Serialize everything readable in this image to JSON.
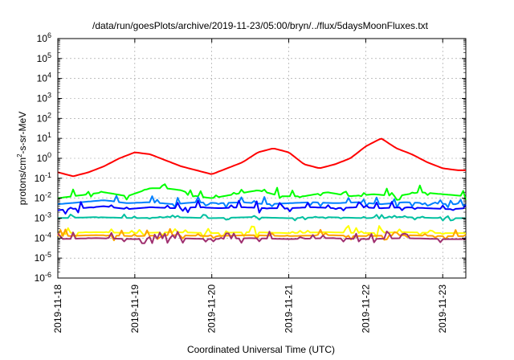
{
  "chart_data": {
    "type": "line",
    "title": "/data/run/goesPlots/archive/2019-11-23/05:00/bryn/../flux/5daysMoonFluxes.txt",
    "xlabel": "Coordinated Universal Time (UTC)",
    "ylabel": "protons/cm²-s-sr-MeV",
    "ylabel_parts": {
      "base": "protons/cm",
      "sup": "2",
      "rest": "-s-sr-MeV"
    },
    "x_ticks": [
      "2019-11-18",
      "2019-11-19",
      "2019-11-20",
      "2019-11-21",
      "2019-11-22",
      "2019-11-23"
    ],
    "x_range": [
      "2019-11-18",
      "2019-11-23 07:00"
    ],
    "y_scale": "log",
    "ylim": [
      1e-06,
      1000000.0
    ],
    "y_ticks": [
      {
        "base": "10",
        "exp": "-6"
      },
      {
        "base": "10",
        "exp": "-5"
      },
      {
        "base": "10",
        "exp": "-4"
      },
      {
        "base": "10",
        "exp": "-3"
      },
      {
        "base": "10",
        "exp": "-2"
      },
      {
        "base": "10",
        "exp": "-1"
      },
      {
        "base": "10",
        "exp": "0"
      },
      {
        "base": "10",
        "exp": "1"
      },
      {
        "base": "10",
        "exp": "2"
      },
      {
        "base": "10",
        "exp": "3"
      },
      {
        "base": "10",
        "exp": "4"
      },
      {
        "base": "10",
        "exp": "5"
      },
      {
        "base": "10",
        "exp": "6"
      }
    ],
    "grid": true,
    "series": [
      {
        "color": "#ff0000",
        "x_days": [
          0,
          0.2,
          0.4,
          0.6,
          0.8,
          1.0,
          1.2,
          1.4,
          1.6,
          1.8,
          2.0,
          2.2,
          2.4,
          2.6,
          2.8,
          3.0,
          3.2,
          3.4,
          3.6,
          3.8,
          4.0,
          4.2,
          4.4,
          4.6,
          4.8,
          5.0,
          5.2,
          5.3
        ],
        "log_values": [
          -0.7,
          -0.9,
          -0.7,
          -0.4,
          0.0,
          0.3,
          0.2,
          -0.1,
          -0.4,
          -0.6,
          -0.8,
          -0.5,
          -0.2,
          0.3,
          0.5,
          0.3,
          -0.3,
          -0.5,
          -0.3,
          0.0,
          0.6,
          1.0,
          0.5,
          0.2,
          -0.2,
          -0.5,
          -0.6,
          -0.6
        ]
      },
      {
        "color": "#00ff00",
        "x_days": [
          0,
          0.3,
          0.6,
          0.9,
          1.2,
          1.4,
          1.6,
          1.8,
          2.0,
          2.3,
          2.6,
          2.9,
          3.2,
          3.5,
          3.8,
          4.1,
          4.4,
          4.7,
          5.0,
          5.3
        ],
        "log_values": [
          -2.0,
          -1.85,
          -1.7,
          -1.9,
          -1.5,
          -1.5,
          -1.6,
          -1.9,
          -2.0,
          -1.8,
          -1.6,
          -1.9,
          -1.9,
          -1.7,
          -1.9,
          -1.8,
          -1.9,
          -1.7,
          -1.8,
          -1.9
        ]
      },
      {
        "color": "#0080ff",
        "x_days": [
          0,
          0.3,
          0.6,
          0.9,
          1.2,
          1.5,
          1.8,
          2.1,
          2.4,
          2.7,
          3.0,
          3.3,
          3.6,
          3.9,
          4.2,
          4.5,
          4.8,
          5.1,
          5.3
        ],
        "log_values": [
          -2.3,
          -2.2,
          -2.1,
          -2.25,
          -2.2,
          -2.3,
          -2.2,
          -2.25,
          -2.2,
          -2.3,
          -2.25,
          -2.2,
          -2.25,
          -2.2,
          -2.3,
          -2.2,
          -2.25,
          -2.3,
          -2.3
        ]
      },
      {
        "color": "#0000ff",
        "x_days": [
          0,
          0.3,
          0.6,
          0.9,
          1.2,
          1.5,
          1.8,
          2.1,
          2.4,
          2.7,
          3.0,
          3.3,
          3.6,
          3.9,
          4.2,
          4.5,
          4.8,
          5.1,
          5.3
        ],
        "log_values": [
          -2.6,
          -2.5,
          -2.4,
          -2.55,
          -2.45,
          -2.5,
          -2.45,
          -2.5,
          -2.45,
          -2.5,
          -2.5,
          -2.45,
          -2.5,
          -2.45,
          -2.5,
          -2.45,
          -2.5,
          -2.55,
          -2.5
        ]
      },
      {
        "color": "#00c0a0",
        "x_days": [
          0,
          0.5,
          1.0,
          1.5,
          2.0,
          2.5,
          3.0,
          3.5,
          4.0,
          4.5,
          5.0,
          5.3
        ],
        "log_values": [
          -3.0,
          -2.95,
          -3.0,
          -2.95,
          -3.0,
          -2.95,
          -3.0,
          -2.95,
          -3.0,
          -2.95,
          -3.0,
          -3.0
        ]
      },
      {
        "color": "#ffff00",
        "x_days": [
          0,
          0.5,
          1.0,
          1.5,
          2.0,
          2.5,
          3.0,
          3.5,
          4.0,
          4.5,
          5.0,
          5.3
        ],
        "log_values": [
          -3.75,
          -3.7,
          -3.75,
          -3.7,
          -3.75,
          -3.7,
          -3.75,
          -3.7,
          -3.75,
          -3.7,
          -3.75,
          -3.75
        ]
      },
      {
        "color": "#ffa000",
        "x_days": [
          0,
          0.5,
          1.0,
          1.5,
          2.0,
          2.5,
          3.0,
          3.5,
          4.0,
          4.5,
          5.0,
          5.3
        ],
        "log_values": [
          -3.9,
          -3.85,
          -3.9,
          -3.85,
          -3.9,
          -3.85,
          -3.9,
          -3.85,
          -3.9,
          -3.85,
          -3.9,
          -3.9
        ]
      },
      {
        "color": "#a03070",
        "x_days": [
          0,
          0.5,
          1.0,
          1.5,
          2.0,
          2.5,
          3.0,
          3.5,
          4.0,
          4.5,
          5.0,
          5.3
        ],
        "log_values": [
          -4.05,
          -4.0,
          -4.05,
          -4.0,
          -4.05,
          -4.0,
          -4.05,
          -4.0,
          -4.05,
          -4.0,
          -4.05,
          -4.05
        ]
      }
    ]
  }
}
